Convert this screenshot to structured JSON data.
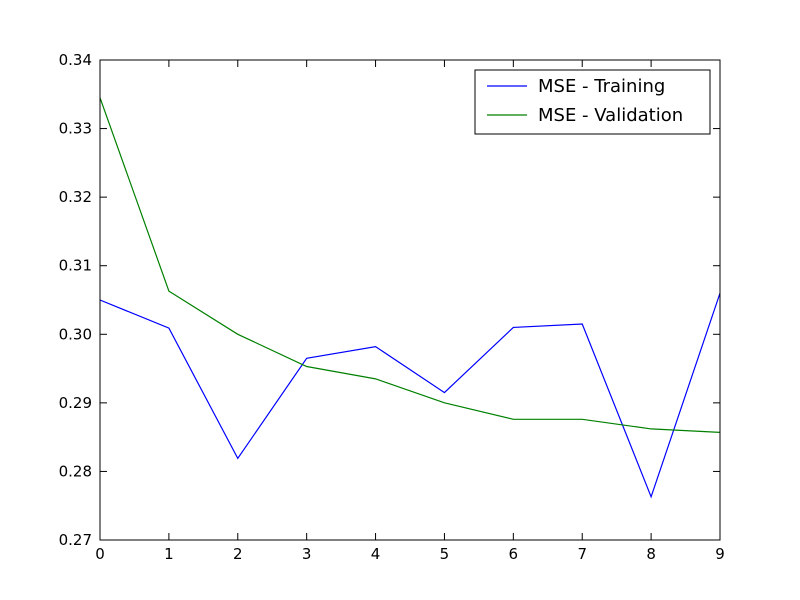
{
  "chart_data": {
    "type": "line",
    "title": "",
    "xlabel": "",
    "ylabel": "",
    "x": [
      0,
      1,
      2,
      3,
      4,
      5,
      6,
      7,
      8,
      9
    ],
    "xlim": [
      0,
      9
    ],
    "ylim": [
      0.27,
      0.34
    ],
    "x_ticks": [
      "0",
      "1",
      "2",
      "3",
      "4",
      "5",
      "6",
      "7",
      "8",
      "9"
    ],
    "y_ticks": [
      "0.27",
      "0.28",
      "0.29",
      "0.30",
      "0.31",
      "0.32",
      "0.33",
      "0.34"
    ],
    "grid": false,
    "legend_position": "top-right",
    "series": [
      {
        "name": "MSE - Training",
        "color": "#0000ff",
        "values": [
          0.305,
          0.3009,
          0.2819,
          0.2965,
          0.2982,
          0.2915,
          0.301,
          0.3015,
          0.2763,
          0.306
        ]
      },
      {
        "name": "MSE - Validation",
        "color": "#008000",
        "values": [
          0.3345,
          0.3063,
          0.3,
          0.2953,
          0.2935,
          0.29,
          0.2876,
          0.2876,
          0.2862,
          0.2857
        ]
      }
    ]
  }
}
